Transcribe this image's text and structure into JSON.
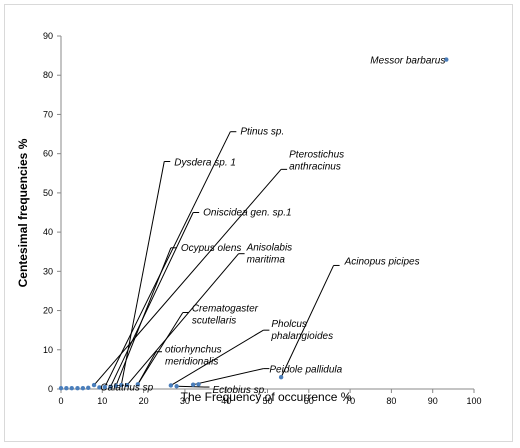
{
  "chart_data": {
    "type": "scatter",
    "title": "",
    "xlabel": "The Frequency of occurrence %",
    "ylabel": "Centesimal frequencies %",
    "xlim": [
      0,
      100
    ],
    "ylim": [
      0,
      90
    ],
    "xticks": [
      0,
      10,
      20,
      30,
      40,
      50,
      60,
      70,
      80,
      90,
      100
    ],
    "yticks": [
      0,
      10,
      20,
      30,
      40,
      50,
      60,
      70,
      80,
      90
    ],
    "grid": false,
    "marker_color": "#4a7ebb",
    "leader_color": "#000000",
    "points": [
      {
        "x": 0.0,
        "y": 0.2
      },
      {
        "x": 1.3,
        "y": 0.2
      },
      {
        "x": 2.6,
        "y": 0.2
      },
      {
        "x": 4.0,
        "y": 0.2
      },
      {
        "x": 5.3,
        "y": 0.2
      },
      {
        "x": 6.6,
        "y": 0.3
      },
      {
        "x": 8.0,
        "y": 1.0
      },
      {
        "x": 9.3,
        "y": 0.4
      },
      {
        "x": 10.6,
        "y": 0.5
      },
      {
        "x": 12.0,
        "y": 0.6
      },
      {
        "x": 13.3,
        "y": 0.8
      },
      {
        "x": 14.6,
        "y": 1.0
      },
      {
        "x": 16.0,
        "y": 1.0
      },
      {
        "x": 18.6,
        "y": 1.2
      },
      {
        "x": 26.6,
        "y": 0.9
      },
      {
        "x": 28.0,
        "y": 0.7
      },
      {
        "x": 32.0,
        "y": 1.1
      },
      {
        "x": 33.3,
        "y": 1.2
      },
      {
        "x": 53.3,
        "y": 3.0
      },
      {
        "x": 93.3,
        "y": 84.0
      }
    ],
    "annotations": [
      {
        "label": "Messor barbarus",
        "lines": [
          "Messor barbarus"
        ],
        "x": 93.3,
        "y": 84.0,
        "lx": 93.3,
        "ly": 84.0,
        "anchor": "end",
        "dx": -1,
        "dy": 4
      },
      {
        "label": "Ptinus sp.",
        "lines": [
          "Ptinus sp."
        ],
        "x": 10.6,
        "y": 0.5,
        "lx": 41.0,
        "ly": 65.6,
        "anchor": "start",
        "dx": 4,
        "dy": 3
      },
      {
        "label": "Dysdera sp. 1",
        "lines": [
          "Dysdera sp. 1"
        ],
        "x": 14.6,
        "y": 1.0,
        "lx": 25.0,
        "ly": 58.0,
        "anchor": "start",
        "dx": 4,
        "dy": 4
      },
      {
        "label": "Pterostichus anthracinus",
        "lines": [
          "Pterostichus",
          "anthracinus"
        ],
        "x": 8.0,
        "y": 1.0,
        "lx": 53.3,
        "ly": 56.0,
        "anchor": "start",
        "dx": 2,
        "dy": -12
      },
      {
        "label": "Oniscidea gen. sp.1",
        "lines": [
          "Oniscidea gen. sp.1"
        ],
        "x": 12.0,
        "y": 0.6,
        "lx": 32.0,
        "ly": 45.0,
        "anchor": "start",
        "dx": 4,
        "dy": 3
      },
      {
        "label": "Ocypus olens",
        "lines": [
          "Ocypus olens"
        ],
        "x": 13.3,
        "y": 0.8,
        "lx": 26.6,
        "ly": 36.0,
        "anchor": "start",
        "dx": 4,
        "dy": 3
      },
      {
        "label": "Anisolabis maritima",
        "lines": [
          "Anisolabis",
          "maritima"
        ],
        "x": 16.0,
        "y": 1.0,
        "lx": 43.0,
        "ly": 34.5,
        "anchor": "start",
        "dx": 2,
        "dy": -3
      },
      {
        "label": "Acinopus picipes",
        "lines": [
          "Acinopus picipes"
        ],
        "x": 53.3,
        "y": 3.0,
        "lx": 66.0,
        "ly": 31.5,
        "anchor": "start",
        "dx": 5,
        "dy": -1
      },
      {
        "label": "Crematogaster scutellaris",
        "lines": [
          "Crematogaster",
          "scutellaris"
        ],
        "x": 18.6,
        "y": 1.2,
        "lx": 29.5,
        "ly": 19.5,
        "anchor": "start",
        "dx": 3,
        "dy": -1
      },
      {
        "label": "Pholcus phalangioides",
        "lines": [
          "Pholcus",
          "phalangioides"
        ],
        "x": 26.6,
        "y": 0.9,
        "lx": 49.0,
        "ly": 15.0,
        "anchor": "start",
        "dx": 2,
        "dy": -3
      },
      {
        "label": "otiorhynchus meridionalis",
        "lines": [
          "otiorhynchus",
          "meridionalis"
        ],
        "x": 18.6,
        "y": 1.2,
        "lx": 23.0,
        "ly": 9.5,
        "anchor": "start",
        "dx": 3,
        "dy": 1
      },
      {
        "label": "Peidole pallidula",
        "lines": [
          "Peidole pallidula"
        ],
        "x": 32.0,
        "y": 1.1,
        "lx": 49.0,
        "ly": 5.2,
        "anchor": "start",
        "dx": 0,
        "dy": 4
      },
      {
        "label": "Ectobius sp.",
        "lines": [
          "Ectobius sp."
        ],
        "x": 28.0,
        "y": 0.7,
        "lx": 34.5,
        "ly": 0.5,
        "anchor": "start",
        "dx": 3,
        "dy": 6
      },
      {
        "label": "Calathus sp",
        "lines": [
          "Calathus sp"
        ],
        "x": 9.3,
        "y": 0.4,
        "lx": 9.3,
        "ly": 0.4,
        "anchor": "start",
        "dx": 1,
        "dy": 3
      }
    ]
  }
}
